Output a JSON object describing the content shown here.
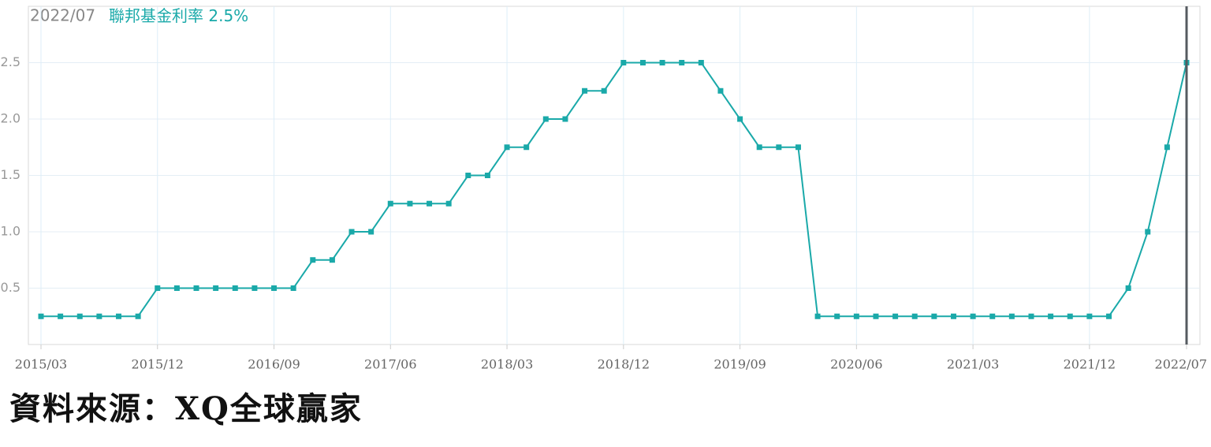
{
  "chart_data": {
    "type": "line",
    "annotation_date": "2022/07",
    "annotation_value": "2.5%",
    "categories": [
      "2015/03",
      null,
      null,
      null,
      null,
      null,
      "2015/12",
      null,
      null,
      null,
      null,
      null,
      "2016/09",
      null,
      null,
      null,
      null,
      null,
      "2017/06",
      null,
      null,
      null,
      null,
      null,
      "2018/03",
      null,
      null,
      null,
      null,
      null,
      "2018/12",
      null,
      null,
      null,
      null,
      null,
      "2019/09",
      null,
      null,
      null,
      null,
      null,
      "2020/06",
      null,
      null,
      null,
      null,
      null,
      "2021/03",
      null,
      null,
      null,
      null,
      null,
      "2021/12",
      null,
      null,
      null,
      null,
      "2022/07"
    ],
    "series": [
      {
        "name": "聯邦基金利率",
        "color": "#1aa9a9",
        "values": [
          0.25,
          0.25,
          0.25,
          0.25,
          0.25,
          0.25,
          0.5,
          0.5,
          0.5,
          0.5,
          0.5,
          0.5,
          0.5,
          0.5,
          0.75,
          0.75,
          1.0,
          1.0,
          1.25,
          1.25,
          1.25,
          1.25,
          1.5,
          1.5,
          1.75,
          1.75,
          2.0,
          2.0,
          2.25,
          2.25,
          2.5,
          2.5,
          2.5,
          2.5,
          2.5,
          2.25,
          2.0,
          1.75,
          1.75,
          1.75,
          0.25,
          0.25,
          0.25,
          0.25,
          0.25,
          0.25,
          0.25,
          0.25,
          0.25,
          0.25,
          0.25,
          0.25,
          0.25,
          0.25,
          0.25,
          0.25,
          0.5,
          1.0,
          1.75,
          2.5
        ]
      }
    ],
    "ylim": [
      0,
      3
    ],
    "yticks": [
      0.5,
      {
        "value": 1.0,
        "label": "1.0"
      },
      1.5,
      {
        "value": 2.0,
        "label": "2.0"
      },
      2.5
    ],
    "grid": true,
    "source": "資料來源：XQ全球贏家"
  }
}
